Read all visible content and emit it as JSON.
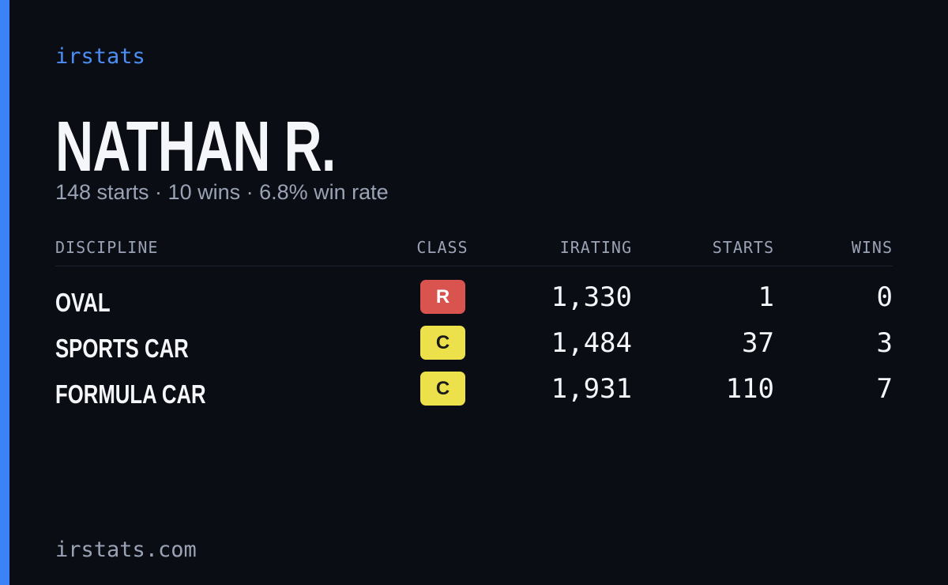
{
  "header": {
    "brand": "irstats",
    "name": "NATHAN R.",
    "summary": "148 starts · 10 wins · 6.8% win rate"
  },
  "table": {
    "columns": [
      "DISCIPLINE",
      "CLASS",
      "IRATING",
      "STARTS",
      "WINS"
    ],
    "rows": [
      {
        "discipline": "OVAL",
        "class": "R",
        "class_color": "#d9534f",
        "class_text_color": "#ffffff",
        "irating": "1,330",
        "starts": "1",
        "wins": "0"
      },
      {
        "discipline": "SPORTS CAR",
        "class": "C",
        "class_color": "#ede14b",
        "class_text_color": "#1a1a1a",
        "irating": "1,484",
        "starts": "37",
        "wins": "3"
      },
      {
        "discipline": "FORMULA CAR",
        "class": "C",
        "class_color": "#ede14b",
        "class_text_color": "#1a1a1a",
        "irating": "1,931",
        "starts": "110",
        "wins": "7"
      }
    ]
  },
  "footer": {
    "site": "irstats.com"
  }
}
